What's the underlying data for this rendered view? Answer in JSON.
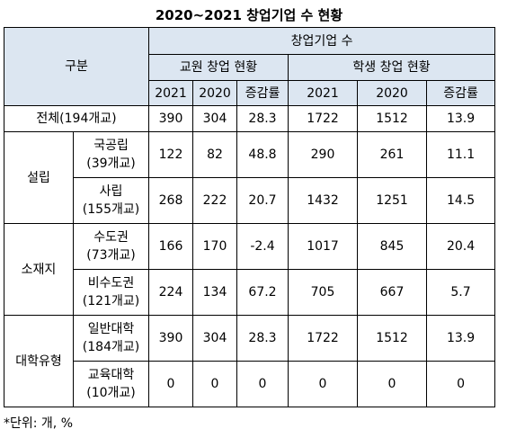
{
  "title": "2020~2021 창업기업 수 현황",
  "headers": {
    "gubun": "구분",
    "startup_count": "창업기업 수",
    "faculty": "교원 창업 현황",
    "student": "학생 창업 현황",
    "y2021": "2021",
    "y2020": "2020",
    "change": "증감률"
  },
  "rows": {
    "total": {
      "label": "전체(194개교)",
      "values": [
        "390",
        "304",
        "28.3",
        "1722",
        "1512",
        "13.9"
      ]
    },
    "founding": {
      "group": "설립",
      "national": {
        "name": "국공립",
        "count": "(39개교)",
        "values": [
          "122",
          "82",
          "48.8",
          "290",
          "261",
          "11.1"
        ]
      },
      "private": {
        "name": "사립",
        "count": "(155개교)",
        "values": [
          "268",
          "222",
          "20.7",
          "1432",
          "1251",
          "14.5"
        ]
      }
    },
    "location": {
      "group": "소재지",
      "capital": {
        "name": "수도권",
        "count": "(73개교)",
        "values": [
          "166",
          "170",
          "-2.4",
          "1017",
          "845",
          "20.4"
        ]
      },
      "non_capital": {
        "name": "비수도권",
        "count": "(121개교)",
        "values": [
          "224",
          "134",
          "67.2",
          "705",
          "667",
          "5.7"
        ]
      }
    },
    "univ_type": {
      "group": "대학유형",
      "general": {
        "name": "일반대학",
        "count": "(184개교)",
        "values": [
          "390",
          "304",
          "28.3",
          "1722",
          "1512",
          "13.9"
        ]
      },
      "education": {
        "name": "교육대학",
        "count": "(10개교)",
        "values": [
          "0",
          "0",
          "0",
          "0",
          "0",
          "0"
        ]
      }
    }
  },
  "footnote": "*단위: 개, %"
}
